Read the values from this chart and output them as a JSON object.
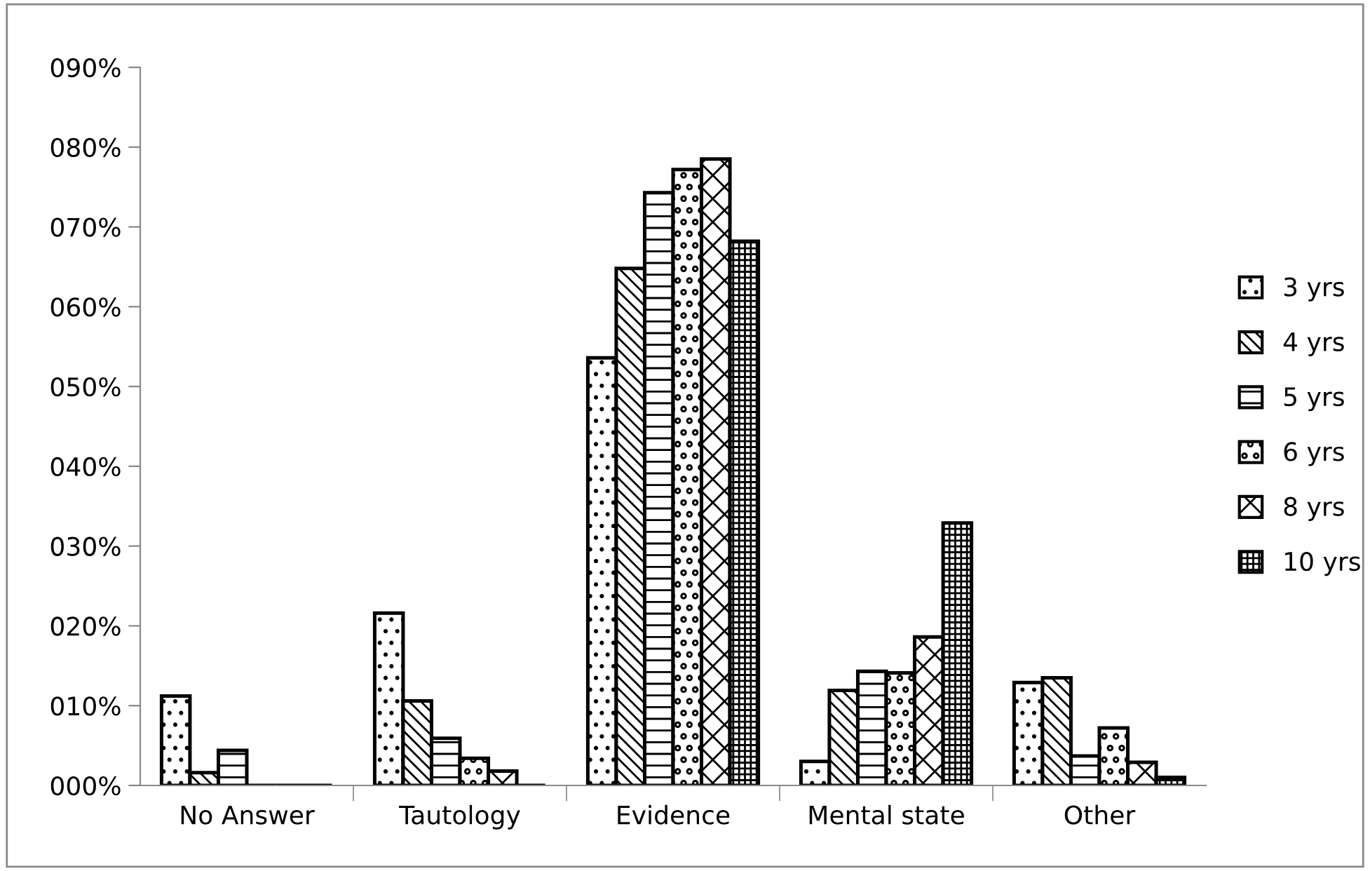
{
  "chart_data": {
    "type": "bar",
    "categories": [
      "No Answer",
      "Tautology",
      "Evidence",
      "Mental state",
      "Other"
    ],
    "series": [
      {
        "name": "3 yrs",
        "values": [
          11.2,
          21.6,
          53.6,
          3.0,
          12.9
        ]
      },
      {
        "name": "4 yrs",
        "values": [
          1.6,
          10.6,
          64.8,
          11.9,
          13.5
        ]
      },
      {
        "name": "5 yrs",
        "values": [
          4.4,
          5.9,
          74.3,
          14.3,
          3.7
        ]
      },
      {
        "name": "6 yrs",
        "values": [
          0,
          3.4,
          77.2,
          14.1,
          7.2
        ]
      },
      {
        "name": "8 yrs",
        "values": [
          0,
          1.8,
          78.5,
          18.6,
          2.9
        ]
      },
      {
        "name": "10 yrs",
        "values": [
          0,
          0,
          68.2,
          32.9,
          1.0
        ]
      }
    ],
    "ylim": [
      0,
      90
    ],
    "yticks": [
      {
        "value": 0,
        "label": "000%"
      },
      {
        "value": 10,
        "label": "010%"
      },
      {
        "value": 20,
        "label": "020%"
      },
      {
        "value": 30,
        "label": "030%"
      },
      {
        "value": 40,
        "label": "040%"
      },
      {
        "value": 50,
        "label": "050%"
      },
      {
        "value": 60,
        "label": "060%"
      },
      {
        "value": 70,
        "label": "070%"
      },
      {
        "value": 80,
        "label": "080%"
      },
      {
        "value": 90,
        "label": "090%"
      }
    ],
    "grid": false,
    "legend": "right"
  }
}
